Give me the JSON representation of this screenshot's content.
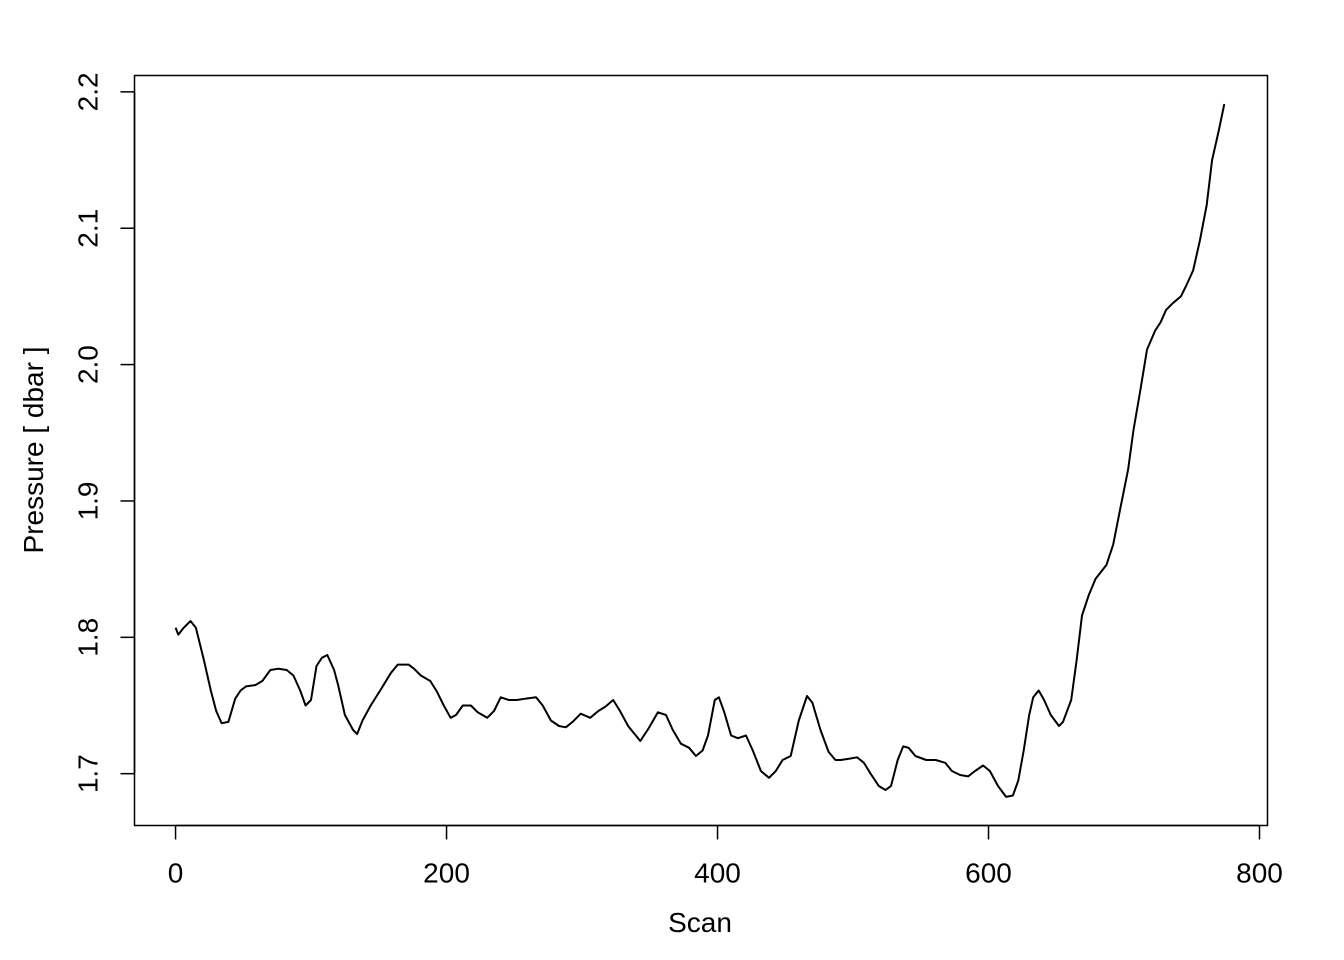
{
  "chart_data": {
    "type": "line",
    "title": "",
    "xlabel": "Scan",
    "ylabel": "Pressure [ dbar ]",
    "xlim": [
      -30.3,
      805.9
    ],
    "ylim": [
      1.662,
      2.212
    ],
    "xticks": [
      0,
      200,
      400,
      600,
      800
    ],
    "xtick_labels": [
      "0",
      "200",
      "400",
      "600",
      "800"
    ],
    "yticks": [
      1.7,
      1.8,
      1.9,
      2.0,
      2.1,
      2.2
    ],
    "ytick_labels": [
      "1.7",
      "1.8",
      "1.9",
      "2.0",
      "2.1",
      "2.2"
    ],
    "grid": false,
    "line_color": "#000000",
    "series": [
      {
        "x": [
          0,
          2,
          6,
          11,
          15,
          21,
          26,
          30,
          34,
          39,
          44,
          48,
          52,
          59,
          64,
          70,
          76,
          82,
          87,
          92,
          96,
          100,
          104,
          108,
          112,
          117,
          120,
          125,
          131,
          134,
          138,
          144,
          151,
          159,
          164,
          172,
          176,
          181,
          188,
          193,
          198,
          203,
          207,
          212,
          218,
          223,
          230,
          235,
          240,
          246,
          252,
          258,
          266,
          271,
          277,
          283,
          288,
          293,
          299,
          306,
          312,
          317,
          323,
          328,
          334,
          343,
          349,
          356,
          362,
          367,
          373,
          379,
          384,
          389,
          393,
          398,
          401,
          405,
          410,
          415,
          421,
          426,
          432,
          438,
          443,
          448,
          454,
          460,
          466,
          470,
          476,
          482,
          487,
          491,
          497,
          503,
          508,
          513,
          519,
          524,
          528,
          533,
          537,
          541,
          546,
          554,
          561,
          568,
          573,
          579,
          585,
          590,
          596,
          601,
          607,
          613,
          618,
          622,
          626,
          630,
          633,
          637,
          641,
          646,
          652,
          655,
          661,
          665,
          669,
          674,
          679,
          683,
          687,
          692,
          697,
          703,
          707,
          712,
          717,
          723,
          727,
          731,
          736,
          742,
          746,
          751,
          756,
          761,
          765,
          770,
          774
        ],
        "y": [
          1.807,
          1.802,
          1.807,
          1.812,
          1.807,
          1.783,
          1.761,
          1.746,
          1.737,
          1.738,
          1.755,
          1.761,
          1.764,
          1.765,
          1.768,
          1.776,
          1.777,
          1.776,
          1.772,
          1.761,
          1.75,
          1.754,
          1.779,
          1.785,
          1.787,
          1.776,
          1.765,
          1.743,
          1.732,
          1.729,
          1.739,
          1.75,
          1.761,
          1.774,
          1.78,
          1.78,
          1.777,
          1.772,
          1.768,
          1.76,
          1.75,
          1.741,
          1.743,
          1.75,
          1.75,
          1.745,
          1.741,
          1.746,
          1.756,
          1.754,
          1.754,
          1.755,
          1.756,
          1.75,
          1.739,
          1.735,
          1.734,
          1.738,
          1.744,
          1.741,
          1.746,
          1.749,
          1.754,
          1.746,
          1.735,
          1.724,
          1.733,
          1.745,
          1.743,
          1.732,
          1.722,
          1.719,
          1.713,
          1.717,
          1.728,
          1.754,
          1.756,
          1.745,
          1.728,
          1.726,
          1.728,
          1.717,
          1.702,
          1.697,
          1.702,
          1.71,
          1.713,
          1.739,
          1.757,
          1.752,
          1.732,
          1.716,
          1.71,
          1.71,
          1.711,
          1.712,
          1.708,
          1.7,
          1.691,
          1.688,
          1.691,
          1.71,
          1.72,
          1.719,
          1.713,
          1.71,
          1.71,
          1.708,
          1.702,
          1.699,
          1.698,
          1.702,
          1.706,
          1.702,
          1.691,
          1.683,
          1.684,
          1.695,
          1.717,
          1.743,
          1.756,
          1.761,
          1.754,
          1.743,
          1.735,
          1.738,
          1.754,
          1.783,
          1.816,
          1.831,
          1.843,
          1.848,
          1.853,
          1.868,
          1.893,
          1.923,
          1.952,
          1.981,
          2.011,
          2.025,
          2.031,
          2.04,
          2.045,
          2.05,
          2.058,
          2.069,
          2.091,
          2.117,
          2.15,
          2.172,
          2.191
        ]
      }
    ]
  }
}
